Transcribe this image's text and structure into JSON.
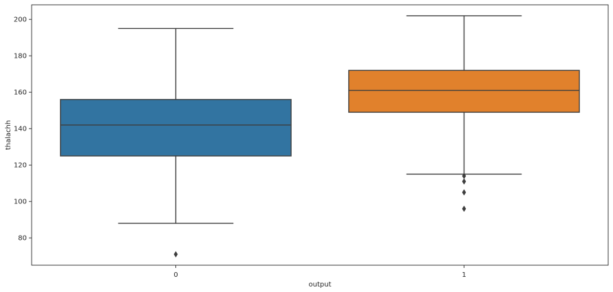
{
  "chart_data": {
    "type": "box",
    "xlabel": "output",
    "ylabel": "thalachh",
    "ylim": [
      65,
      208
    ],
    "yticks": [
      80,
      100,
      120,
      140,
      160,
      180,
      200
    ],
    "categories": [
      "0",
      "1"
    ],
    "grid": false,
    "legend": "none",
    "boxes": [
      {
        "category": "0",
        "color": "#3274a1",
        "whisker_low": 88,
        "q1": 125,
        "median": 142,
        "q3": 156,
        "whisker_high": 195,
        "outliers": [
          71
        ]
      },
      {
        "category": "1",
        "color": "#e1812c",
        "whisker_low": 115,
        "q1": 149,
        "median": 161,
        "q3": 172,
        "whisker_high": 202,
        "outliers": [
          96,
          105,
          111,
          114
        ]
      }
    ]
  }
}
